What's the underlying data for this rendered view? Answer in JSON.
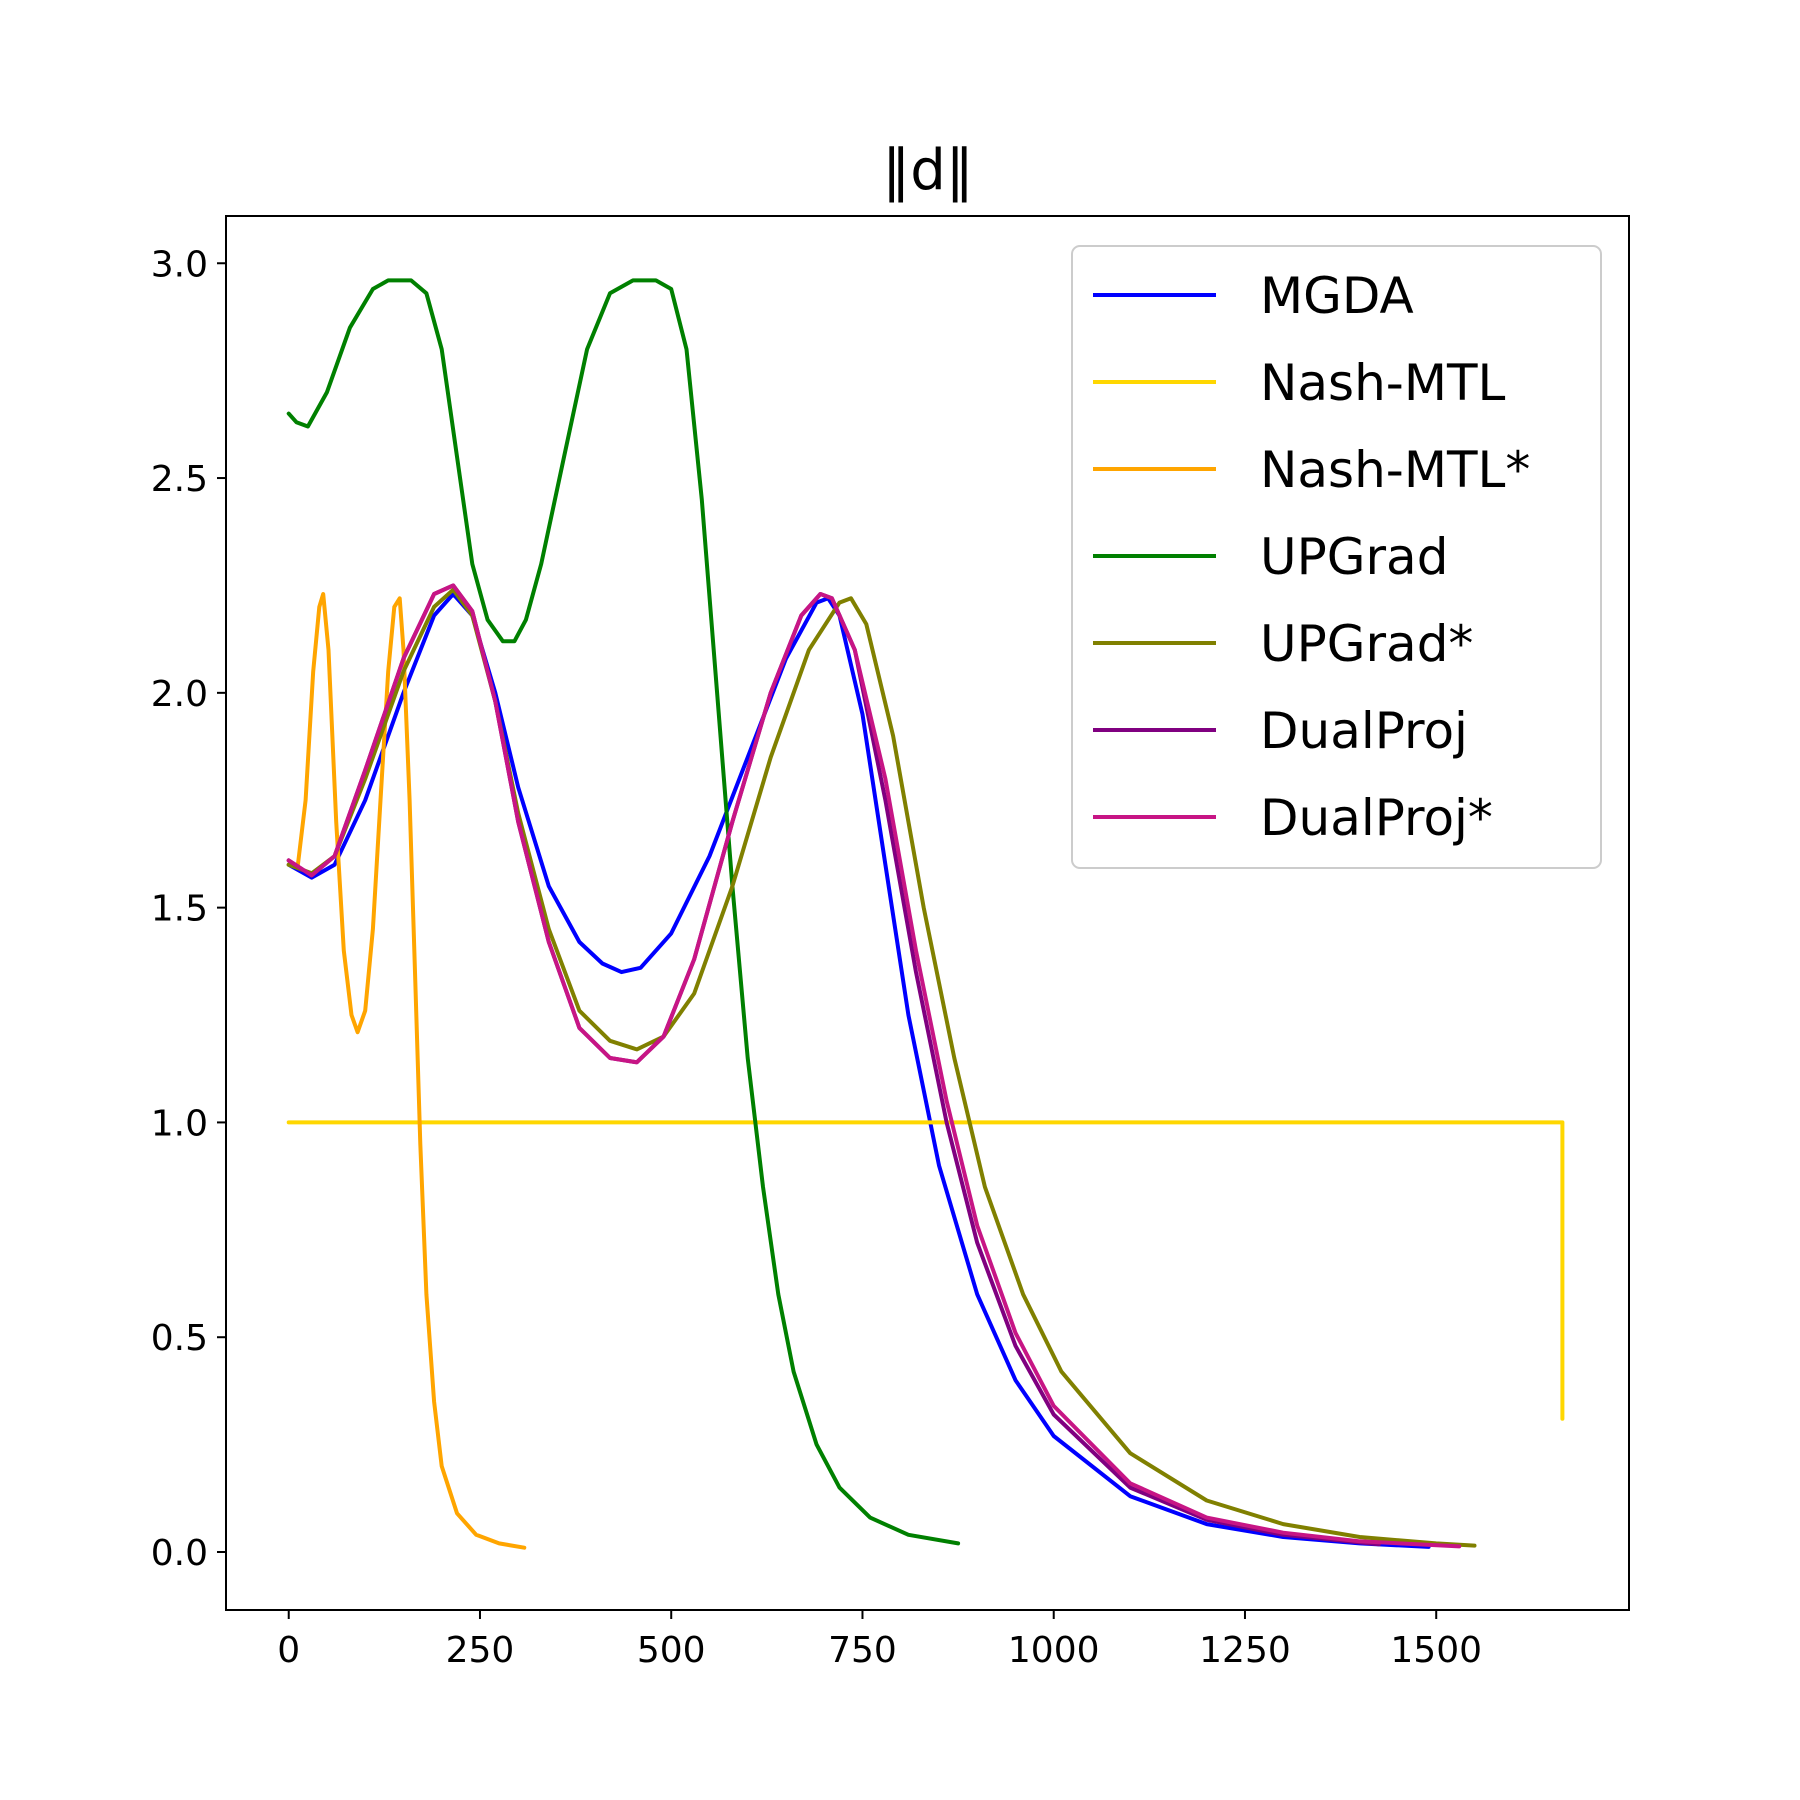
{
  "chart_data": {
    "type": "line",
    "title": "‖d‖",
    "xlabel": "",
    "ylabel": "",
    "xlim": [
      -82,
      1752
    ],
    "ylim": [
      -0.135,
      3.11
    ],
    "xticks": [
      0,
      250,
      500,
      750,
      1000,
      1250,
      1500
    ],
    "xtick_labels": [
      "0",
      "250",
      "500",
      "750",
      "1000",
      "1250",
      "1500"
    ],
    "yticks": [
      0.0,
      0.5,
      1.0,
      1.5,
      2.0,
      2.5,
      3.0
    ],
    "ytick_labels": [
      "0.0",
      "0.5",
      "1.0",
      "1.5",
      "2.0",
      "2.5",
      "3.0"
    ],
    "grid": false,
    "legend_position": "upper right",
    "series": [
      {
        "name": "MGDA",
        "color": "#0000ff",
        "points": [
          [
            0,
            1.6
          ],
          [
            30,
            1.57
          ],
          [
            60,
            1.6
          ],
          [
            100,
            1.75
          ],
          [
            150,
            2.0
          ],
          [
            190,
            2.18
          ],
          [
            215,
            2.23
          ],
          [
            240,
            2.18
          ],
          [
            270,
            2.0
          ],
          [
            300,
            1.78
          ],
          [
            340,
            1.55
          ],
          [
            380,
            1.42
          ],
          [
            410,
            1.37
          ],
          [
            435,
            1.35
          ],
          [
            460,
            1.36
          ],
          [
            500,
            1.44
          ],
          [
            550,
            1.62
          ],
          [
            600,
            1.85
          ],
          [
            650,
            2.08
          ],
          [
            690,
            2.21
          ],
          [
            705,
            2.22
          ],
          [
            720,
            2.18
          ],
          [
            750,
            1.95
          ],
          [
            780,
            1.6
          ],
          [
            810,
            1.25
          ],
          [
            850,
            0.9
          ],
          [
            900,
            0.6
          ],
          [
            950,
            0.4
          ],
          [
            1000,
            0.27
          ],
          [
            1100,
            0.13
          ],
          [
            1200,
            0.065
          ],
          [
            1300,
            0.035
          ],
          [
            1400,
            0.02
          ],
          [
            1490,
            0.012
          ]
        ]
      },
      {
        "name": "Nash-MTL",
        "color": "#ffd700",
        "points": [
          [
            0,
            1.0
          ],
          [
            1665,
            1.0
          ],
          [
            1665,
            0.31
          ]
        ]
      },
      {
        "name": "Nash-MTL*",
        "color": "#ffa500",
        "points": [
          [
            0,
            1.6
          ],
          [
            12,
            1.6
          ],
          [
            22,
            1.75
          ],
          [
            32,
            2.05
          ],
          [
            40,
            2.2
          ],
          [
            45,
            2.23
          ],
          [
            52,
            2.1
          ],
          [
            62,
            1.7
          ],
          [
            72,
            1.4
          ],
          [
            82,
            1.25
          ],
          [
            90,
            1.21
          ],
          [
            100,
            1.26
          ],
          [
            110,
            1.45
          ],
          [
            120,
            1.75
          ],
          [
            130,
            2.05
          ],
          [
            138,
            2.2
          ],
          [
            145,
            2.22
          ],
          [
            150,
            2.1
          ],
          [
            158,
            1.75
          ],
          [
            165,
            1.35
          ],
          [
            172,
            0.95
          ],
          [
            180,
            0.6
          ],
          [
            190,
            0.35
          ],
          [
            200,
            0.2
          ],
          [
            220,
            0.09
          ],
          [
            245,
            0.04
          ],
          [
            275,
            0.02
          ],
          [
            308,
            0.01
          ]
        ]
      },
      {
        "name": "UPGrad",
        "color": "#008000",
        "points": [
          [
            0,
            2.65
          ],
          [
            10,
            2.63
          ],
          [
            25,
            2.62
          ],
          [
            50,
            2.7
          ],
          [
            80,
            2.85
          ],
          [
            110,
            2.94
          ],
          [
            130,
            2.96
          ],
          [
            160,
            2.96
          ],
          [
            180,
            2.93
          ],
          [
            200,
            2.8
          ],
          [
            220,
            2.55
          ],
          [
            240,
            2.3
          ],
          [
            260,
            2.17
          ],
          [
            280,
            2.12
          ],
          [
            295,
            2.12
          ],
          [
            310,
            2.17
          ],
          [
            330,
            2.3
          ],
          [
            360,
            2.55
          ],
          [
            390,
            2.8
          ],
          [
            420,
            2.93
          ],
          [
            450,
            2.96
          ],
          [
            480,
            2.96
          ],
          [
            500,
            2.94
          ],
          [
            520,
            2.8
          ],
          [
            540,
            2.45
          ],
          [
            560,
            2.0
          ],
          [
            580,
            1.55
          ],
          [
            600,
            1.15
          ],
          [
            620,
            0.85
          ],
          [
            640,
            0.6
          ],
          [
            660,
            0.42
          ],
          [
            690,
            0.25
          ],
          [
            720,
            0.15
          ],
          [
            760,
            0.08
          ],
          [
            810,
            0.04
          ],
          [
            875,
            0.02
          ]
        ]
      },
      {
        "name": "UPGrad*",
        "color": "#808000",
        "points": [
          [
            0,
            1.6
          ],
          [
            30,
            1.58
          ],
          [
            60,
            1.62
          ],
          [
            100,
            1.8
          ],
          [
            150,
            2.05
          ],
          [
            190,
            2.2
          ],
          [
            215,
            2.24
          ],
          [
            240,
            2.18
          ],
          [
            270,
            1.98
          ],
          [
            300,
            1.72
          ],
          [
            340,
            1.45
          ],
          [
            380,
            1.26
          ],
          [
            420,
            1.19
          ],
          [
            455,
            1.17
          ],
          [
            490,
            1.2
          ],
          [
            530,
            1.3
          ],
          [
            580,
            1.55
          ],
          [
            630,
            1.85
          ],
          [
            680,
            2.1
          ],
          [
            720,
            2.21
          ],
          [
            735,
            2.22
          ],
          [
            755,
            2.16
          ],
          [
            790,
            1.9
          ],
          [
            830,
            1.5
          ],
          [
            870,
            1.15
          ],
          [
            910,
            0.85
          ],
          [
            960,
            0.6
          ],
          [
            1010,
            0.42
          ],
          [
            1100,
            0.23
          ],
          [
            1200,
            0.12
          ],
          [
            1300,
            0.065
          ],
          [
            1400,
            0.035
          ],
          [
            1500,
            0.02
          ],
          [
            1550,
            0.015
          ]
        ]
      },
      {
        "name": "DualProj",
        "color": "#800080",
        "points": [
          [
            0,
            1.61
          ],
          [
            30,
            1.575
          ],
          [
            60,
            1.62
          ],
          [
            100,
            1.82
          ],
          [
            150,
            2.08
          ],
          [
            190,
            2.23
          ],
          [
            215,
            2.25
          ],
          [
            240,
            2.19
          ],
          [
            270,
            1.98
          ],
          [
            300,
            1.7
          ],
          [
            340,
            1.42
          ],
          [
            380,
            1.22
          ],
          [
            420,
            1.15
          ],
          [
            455,
            1.14
          ],
          [
            490,
            1.2
          ],
          [
            530,
            1.38
          ],
          [
            580,
            1.7
          ],
          [
            630,
            2.0
          ],
          [
            670,
            2.18
          ],
          [
            695,
            2.23
          ],
          [
            710,
            2.22
          ],
          [
            740,
            2.1
          ],
          [
            780,
            1.75
          ],
          [
            820,
            1.35
          ],
          [
            860,
            1.0
          ],
          [
            900,
            0.72
          ],
          [
            950,
            0.48
          ],
          [
            1000,
            0.32
          ],
          [
            1100,
            0.15
          ],
          [
            1200,
            0.075
          ],
          [
            1300,
            0.04
          ],
          [
            1425,
            0.018
          ]
        ]
      },
      {
        "name": "DualProj*",
        "color": "#c71585",
        "points": [
          [
            0,
            1.61
          ],
          [
            30,
            1.575
          ],
          [
            60,
            1.62
          ],
          [
            100,
            1.82
          ],
          [
            150,
            2.08
          ],
          [
            190,
            2.23
          ],
          [
            215,
            2.25
          ],
          [
            240,
            2.19
          ],
          [
            270,
            1.98
          ],
          [
            300,
            1.7
          ],
          [
            340,
            1.42
          ],
          [
            380,
            1.22
          ],
          [
            420,
            1.15
          ],
          [
            455,
            1.14
          ],
          [
            490,
            1.2
          ],
          [
            530,
            1.38
          ],
          [
            580,
            1.7
          ],
          [
            630,
            2.0
          ],
          [
            670,
            2.18
          ],
          [
            695,
            2.23
          ],
          [
            710,
            2.22
          ],
          [
            740,
            2.1
          ],
          [
            780,
            1.8
          ],
          [
            820,
            1.4
          ],
          [
            860,
            1.05
          ],
          [
            900,
            0.76
          ],
          [
            950,
            0.51
          ],
          [
            1000,
            0.34
          ],
          [
            1100,
            0.16
          ],
          [
            1200,
            0.08
          ],
          [
            1300,
            0.045
          ],
          [
            1400,
            0.025
          ],
          [
            1530,
            0.013
          ]
        ]
      }
    ]
  }
}
